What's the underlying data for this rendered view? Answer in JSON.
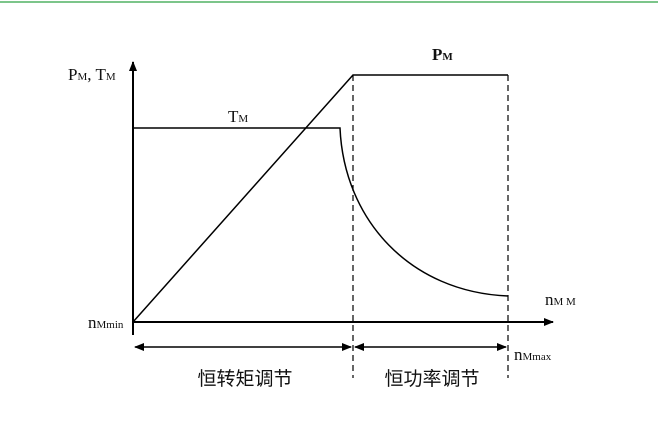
{
  "diagram": {
    "y_axis_label": {
      "p": "P",
      "p_sub": "M",
      "sep": ", T",
      "t_sub": "M"
    },
    "torque_label": {
      "base": "T",
      "sub": "M"
    },
    "power_label": {
      "base": "P",
      "sub": "M"
    },
    "origin_label": {
      "base": "n",
      "sub": "Mmin"
    },
    "x_axis_label": {
      "base": "n",
      "sub": "M M"
    },
    "max_label": {
      "base": "n",
      "sub": "Mmax"
    },
    "region_left": "恒转矩调节",
    "region_right": "恒功率调节"
  }
}
